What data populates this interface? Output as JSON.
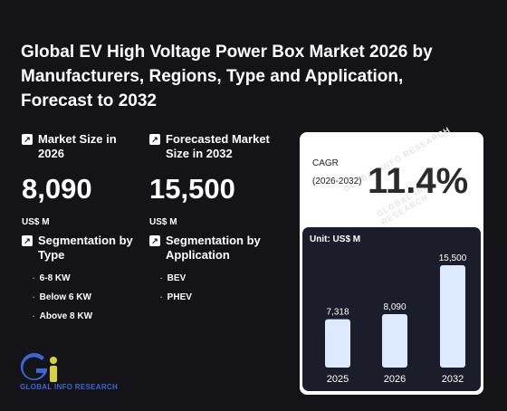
{
  "title": "Global EV High Voltage Power Box Market 2026 by Manufacturers, Regions, Type and Application, Forecast to 2032",
  "market_size": {
    "label": "Market Size in 2026",
    "value": "8,090",
    "unit": "US$ M"
  },
  "forecast_size": {
    "label": "Forecasted Market Size in 2032",
    "value": "15,500",
    "unit": "US$ M"
  },
  "seg_type": {
    "label": "Segmentation by Type",
    "items": [
      "6-8 KW",
      "Below 6 KW",
      "Above 8 KW"
    ]
  },
  "seg_app": {
    "label": "Segmentation by Application",
    "items": [
      "BEV",
      "PHEV"
    ]
  },
  "cagr": {
    "label": "CAGR (2026-2032)",
    "value": "11.4%"
  },
  "watermark": "GLOBAL INFO RESEARCH",
  "logo_text": "GLOBAL INFO RESEARCH",
  "chart_data": {
    "type": "bar",
    "unit_label": "Unit: US$ M",
    "categories": [
      "2025",
      "2026",
      "2032"
    ],
    "values": [
      7318,
      8090,
      15500
    ],
    "data_labels": [
      "7,318",
      "8,090",
      "15,500"
    ],
    "ylim": [
      0,
      15500
    ]
  },
  "colors": {
    "bar": "#dce9ff",
    "card_bg": "#ffffff",
    "chart_bg": "#1b1d2b",
    "logo_blue": "#3b66d6",
    "logo_yellow": "#d8d23a"
  }
}
